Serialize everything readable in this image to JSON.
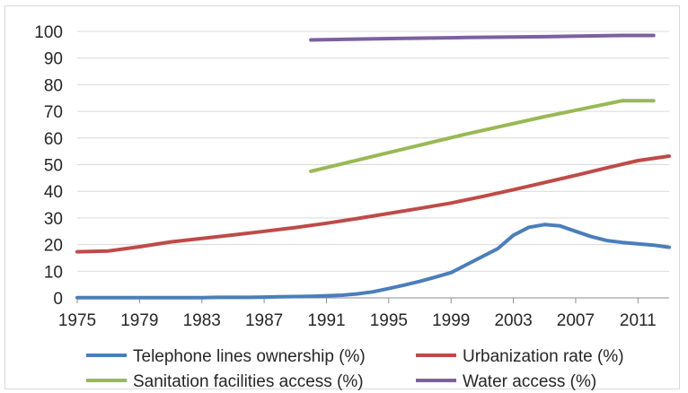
{
  "chart_data": {
    "type": "line",
    "title": "",
    "xlabel": "",
    "ylabel": "",
    "xlim": [
      1975,
      2013
    ],
    "ylim": [
      0,
      100
    ],
    "x_ticks": [
      "1975",
      "1979",
      "1983",
      "1987",
      "1991",
      "1995",
      "1999",
      "2003",
      "2007",
      "2011"
    ],
    "y_ticks": [
      "0",
      "10",
      "20",
      "30",
      "40",
      "50",
      "60",
      "70",
      "80",
      "90",
      "100"
    ],
    "grid": "horizontal",
    "legend_position": "bottom",
    "series": [
      {
        "name": "Telephone lines ownership (%)",
        "color": "#4a7ebb",
        "x": [
          1975,
          1976,
          1977,
          1978,
          1979,
          1980,
          1981,
          1982,
          1983,
          1984,
          1985,
          1986,
          1987,
          1988,
          1989,
          1990,
          1991,
          1992,
          1993,
          1994,
          1995,
          1996,
          1997,
          1998,
          1999,
          2000,
          2001,
          2002,
          2003,
          2004,
          2005,
          2006,
          2007,
          2008,
          2009,
          2010,
          2011,
          2012,
          2013
        ],
        "values": [
          0.1,
          0.1,
          0.1,
          0.1,
          0.1,
          0.1,
          0.1,
          0.1,
          0.1,
          0.2,
          0.2,
          0.2,
          0.3,
          0.4,
          0.5,
          0.6,
          0.8,
          1.0,
          1.5,
          2.3,
          3.5,
          4.8,
          6.2,
          7.8,
          9.5,
          12.5,
          15.5,
          18.5,
          23.5,
          26.5,
          27.5,
          27.0,
          25.0,
          23.0,
          21.5,
          20.8,
          20.3,
          19.8,
          19.0
        ]
      },
      {
        "name": "Urbanization rate (%)",
        "color": "#be4b48",
        "x": [
          1975,
          1977,
          1979,
          1981,
          1983,
          1985,
          1987,
          1989,
          1991,
          1993,
          1995,
          1997,
          1999,
          2001,
          2003,
          2005,
          2007,
          2009,
          2011,
          2013
        ],
        "values": [
          17.3,
          17.6,
          19.2,
          21.0,
          22.3,
          23.6,
          25.0,
          26.4,
          28.0,
          29.8,
          31.7,
          33.6,
          35.6,
          38.0,
          40.6,
          43.3,
          46.0,
          48.8,
          51.5,
          53.2
        ]
      },
      {
        "name": "Sanitation facilities access (%)",
        "color": "#98b954",
        "x": [
          1990,
          1995,
          2000,
          2005,
          2010,
          2012
        ],
        "values": [
          47.5,
          54.5,
          61.5,
          68.0,
          74.0,
          74.0
        ]
      },
      {
        "name": "Water access (%)",
        "color": "#7d60a0",
        "x": [
          1990,
          1995,
          2000,
          2005,
          2010,
          2012
        ],
        "values": [
          96.8,
          97.3,
          97.7,
          98.0,
          98.5,
          98.5
        ]
      }
    ]
  }
}
